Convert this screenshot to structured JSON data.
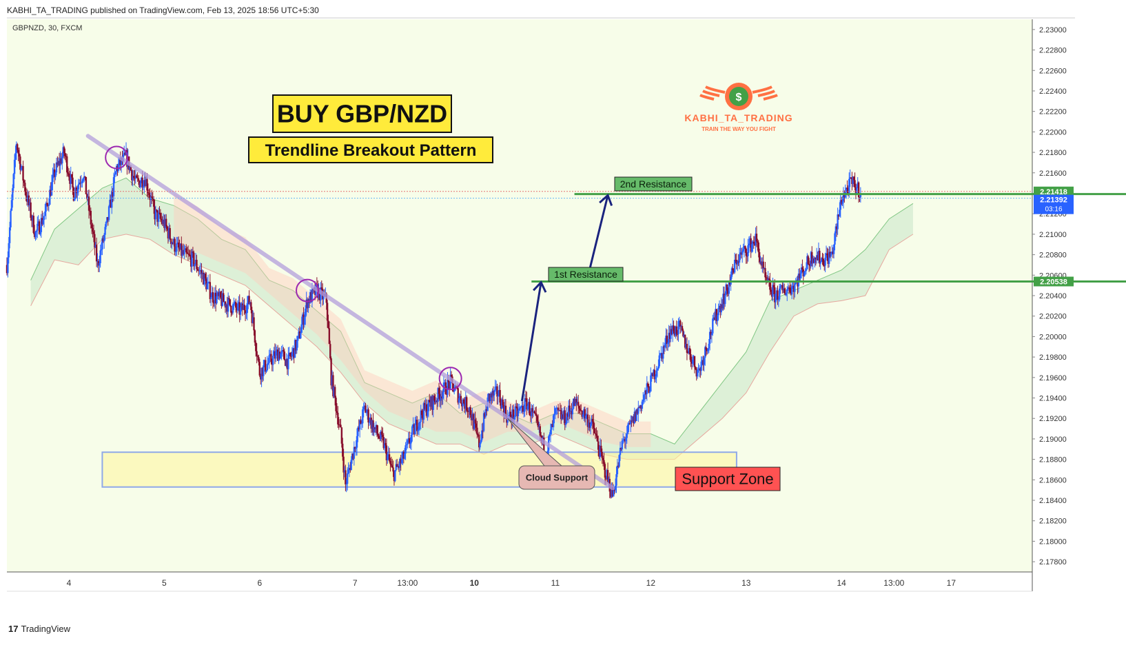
{
  "header": {
    "published": "KABHI_TA_TRADING published on TradingView.com, Feb 13, 2025 18:56 UTC+5:30",
    "symbol": "GBPNZD, 30, FXCM"
  },
  "footer": {
    "brand": "TradingView",
    "logo_glyph": "17"
  },
  "logo": {
    "name": "KABHI_TA_TRADING",
    "tagline": "TRAIN THE WAY YOU FIGHT",
    "symbol": "$"
  },
  "annotations": {
    "title": "BUY GBP/NZD",
    "subtitle": "Trendline Breakout Pattern",
    "resistance1": "1st Resistance",
    "resistance2": "2nd Resistance",
    "cloud_support": "Cloud Support",
    "support_zone": "Support Zone"
  },
  "colors": {
    "background": "#f7fde9",
    "bull": "#2962ff",
    "bear": "#880e2c",
    "resistance_line": "#43a047",
    "trendline": "#b39ddb",
    "support_zone_fill": "#fff59d",
    "support_zone_border": "#8fa8e8",
    "title_box": "#ffeb3b",
    "support_label": "#ff5252",
    "arrow": "#1a237e"
  },
  "price_labels": {
    "level1": "2.21418",
    "current": "2.21392",
    "countdown": "03:16",
    "level2": "2.20538"
  },
  "chart_data": {
    "type": "candlestick",
    "symbol": "GBPNZD",
    "timeframe": "30",
    "source": "FXCM",
    "ylim": [
      2.177,
      2.231
    ],
    "y_ticks": [
      "2.17800",
      "2.18000",
      "2.18200",
      "2.18400",
      "2.18600",
      "2.18800",
      "2.19000",
      "2.19200",
      "2.19400",
      "2.19600",
      "2.19800",
      "2.20000",
      "2.20200",
      "2.20400",
      "2.20600",
      "2.20800",
      "2.21000",
      "2.21200",
      "2.21400",
      "2.21600",
      "2.21800",
      "2.22000",
      "2.22200",
      "2.22400",
      "2.22600",
      "2.22800",
      "2.23000"
    ],
    "x_ticks": [
      "4",
      "5",
      "6",
      "7",
      "13:00",
      "10",
      "11",
      "12",
      "13",
      "14",
      "13:00",
      "17"
    ],
    "x_tick_bold": [
      "10"
    ],
    "x_range": [
      0,
      215
    ],
    "x_tick_positions": [
      13,
      33,
      53,
      73,
      84,
      98,
      115,
      135,
      155,
      175,
      186,
      198
    ],
    "resistance_levels": [
      {
        "label": "1st Resistance",
        "price": 2.20538
      },
      {
        "label": "2nd Resistance",
        "price": 2.21392
      }
    ],
    "support_zone": {
      "label": "Support Zone",
      "price_low": 2.1853,
      "price_high": 2.1887,
      "x_start": 20,
      "x_end": 153
    },
    "trendline": {
      "points": [
        [
          17,
          2.2196
        ],
        [
          127,
          2.1852
        ]
      ]
    },
    "touch_points": [
      [
        23,
        2.2175
      ],
      [
        63,
        2.2045
      ],
      [
        93,
        2.1959
      ]
    ],
    "arrows": [
      {
        "from": [
          108,
          2.1937
        ],
        "to": [
          112,
          2.2053
        ]
      },
      {
        "from": [
          122,
          2.2062
        ],
        "to": [
          126,
          2.2138
        ]
      }
    ],
    "cloud_support_point": [
      105,
      2.192
    ],
    "key_points": [
      [
        0,
        2.207
      ],
      [
        2,
        2.219
      ],
      [
        4,
        2.214
      ],
      [
        6,
        2.21
      ],
      [
        8,
        2.212
      ],
      [
        10,
        2.216
      ],
      [
        12,
        2.218
      ],
      [
        14,
        2.214
      ],
      [
        16,
        2.216
      ],
      [
        18,
        2.21
      ],
      [
        19,
        2.207
      ],
      [
        21,
        2.211
      ],
      [
        23,
        2.2165
      ],
      [
        25,
        2.2175
      ],
      [
        27,
        2.215
      ],
      [
        29,
        2.2155
      ],
      [
        31,
        2.212
      ],
      [
        33,
        2.211
      ],
      [
        35,
        2.209
      ],
      [
        37,
        2.208
      ],
      [
        39,
        2.2075
      ],
      [
        41,
        2.206
      ],
      [
        43,
        2.204
      ],
      [
        45,
        2.2035
      ],
      [
        47,
        2.203
      ],
      [
        49,
        2.2025
      ],
      [
        51,
        2.2035
      ],
      [
        53,
        2.1965
      ],
      [
        55,
        2.1975
      ],
      [
        57,
        2.1985
      ],
      [
        59,
        2.1975
      ],
      [
        61,
        2.1995
      ],
      [
        63,
        2.2035
      ],
      [
        65,
        2.2045
      ],
      [
        67,
        2.2035
      ],
      [
        68,
        2.196
      ],
      [
        70,
        2.1905
      ],
      [
        71,
        2.1855
      ],
      [
        73,
        2.1895
      ],
      [
        75,
        2.193
      ],
      [
        77,
        2.191
      ],
      [
        79,
        2.1895
      ],
      [
        81,
        2.1865
      ],
      [
        83,
        2.188
      ],
      [
        85,
        2.1905
      ],
      [
        87,
        2.1925
      ],
      [
        89,
        2.1935
      ],
      [
        91,
        2.1945
      ],
      [
        93,
        2.1955
      ],
      [
        95,
        2.194
      ],
      [
        97,
        2.193
      ],
      [
        99,
        2.1895
      ],
      [
        101,
        2.194
      ],
      [
        103,
        2.1945
      ],
      [
        105,
        2.192
      ],
      [
        107,
        2.1925
      ],
      [
        109,
        2.1935
      ],
      [
        111,
        2.1915
      ],
      [
        113,
        2.1885
      ],
      [
        115,
        2.1925
      ],
      [
        117,
        2.192
      ],
      [
        119,
        2.1935
      ],
      [
        121,
        2.1925
      ],
      [
        123,
        2.191
      ],
      [
        125,
        2.1875
      ],
      [
        127,
        2.1845
      ],
      [
        129,
        2.1895
      ],
      [
        131,
        2.1915
      ],
      [
        133,
        2.1935
      ],
      [
        135,
        2.1955
      ],
      [
        137,
        2.198
      ],
      [
        139,
        2.2005
      ],
      [
        141,
        2.2008
      ],
      [
        143,
        2.1985
      ],
      [
        145,
        2.1965
      ],
      [
        147,
        2.1995
      ],
      [
        149,
        2.2025
      ],
      [
        151,
        2.2045
      ],
      [
        153,
        2.2075
      ],
      [
        155,
        2.2085
      ],
      [
        157,
        2.2095
      ],
      [
        159,
        2.2055
      ],
      [
        161,
        2.204
      ],
      [
        163,
        2.2045
      ],
      [
        165,
        2.205
      ],
      [
        167,
        2.2065
      ],
      [
        169,
        2.208
      ],
      [
        171,
        2.2075
      ],
      [
        173,
        2.208
      ],
      [
        175,
        2.2135
      ],
      [
        177,
        2.215
      ],
      [
        179,
        2.2142
      ]
    ],
    "ichimoku_cloud": {
      "upper": [
        [
          5,
          2.2055
        ],
        [
          10,
          2.2105
        ],
        [
          15,
          2.2125
        ],
        [
          20,
          2.2145
        ],
        [
          25,
          2.2155
        ],
        [
          30,
          2.2135
        ],
        [
          35,
          2.2128
        ],
        [
          40,
          2.2115
        ],
        [
          45,
          2.2095
        ],
        [
          50,
          2.2085
        ],
        [
          55,
          2.2055
        ],
        [
          60,
          2.2045
        ],
        [
          65,
          2.2025
        ],
        [
          70,
          2.2005
        ],
        [
          75,
          2.1955
        ],
        [
          80,
          2.1945
        ],
        [
          85,
          2.1935
        ],
        [
          90,
          2.1945
        ],
        [
          95,
          2.1925
        ],
        [
          100,
          2.1935
        ],
        [
          105,
          2.1925
        ],
        [
          110,
          2.1915
        ],
        [
          115,
          2.1925
        ],
        [
          120,
          2.1925
        ],
        [
          125,
          2.1915
        ],
        [
          130,
          2.1905
        ],
        [
          135,
          2.1905
        ],
        [
          140,
          2.1895
        ],
        [
          145,
          2.1925
        ],
        [
          150,
          2.1955
        ],
        [
          155,
          2.1985
        ],
        [
          160,
          2.2035
        ],
        [
          165,
          2.2045
        ],
        [
          170,
          2.2055
        ],
        [
          175,
          2.2065
        ],
        [
          180,
          2.2085
        ],
        [
          185,
          2.2115
        ],
        [
          190,
          2.213
        ]
      ],
      "lower": [
        [
          5,
          2.203
        ],
        [
          10,
          2.2075
        ],
        [
          15,
          2.207
        ],
        [
          20,
          2.2095
        ],
        [
          25,
          2.21
        ],
        [
          30,
          2.2095
        ],
        [
          35,
          2.208
        ],
        [
          40,
          2.207
        ],
        [
          45,
          2.206
        ],
        [
          50,
          2.205
        ],
        [
          55,
          2.203
        ],
        [
          60,
          2.201
        ],
        [
          65,
          2.199
        ],
        [
          70,
          2.1965
        ],
        [
          75,
          2.1935
        ],
        [
          80,
          2.1915
        ],
        [
          85,
          2.1905
        ],
        [
          90,
          2.1895
        ],
        [
          95,
          2.1895
        ],
        [
          100,
          2.1885
        ],
        [
          105,
          2.1895
        ],
        [
          110,
          2.1895
        ],
        [
          115,
          2.1905
        ],
        [
          120,
          2.1895
        ],
        [
          125,
          2.1885
        ],
        [
          130,
          2.188
        ],
        [
          135,
          2.188
        ],
        [
          140,
          2.188
        ],
        [
          145,
          2.19
        ],
        [
          150,
          2.192
        ],
        [
          155,
          2.1945
        ],
        [
          160,
          2.1985
        ],
        [
          165,
          2.202
        ],
        [
          170,
          2.2032
        ],
        [
          175,
          2.2035
        ],
        [
          180,
          2.204
        ],
        [
          185,
          2.2085
        ],
        [
          190,
          2.21
        ]
      ]
    }
  }
}
